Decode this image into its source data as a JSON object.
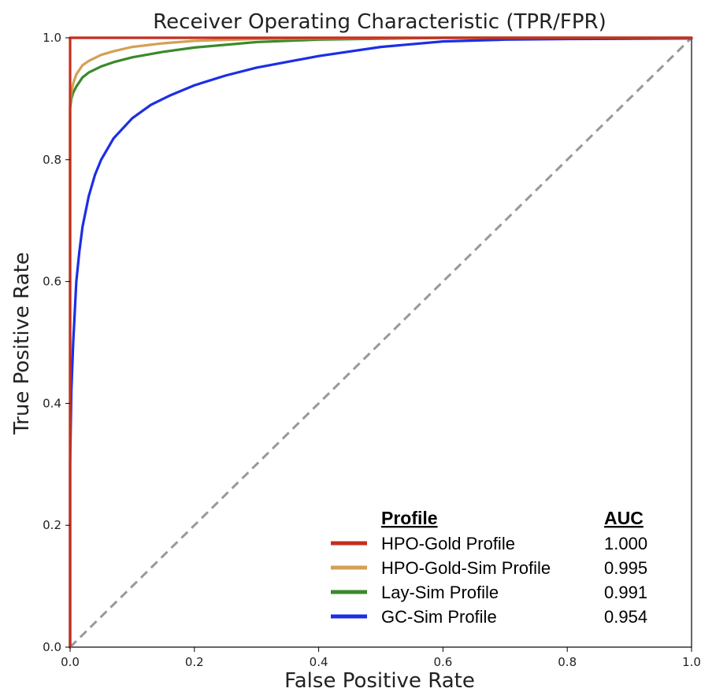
{
  "chart_data": {
    "type": "line",
    "title": "Receiver Operating Characteristic (TPR/FPR)",
    "xlabel": "False Positive Rate",
    "ylabel": "True Positive Rate",
    "xlim": [
      0.0,
      1.0
    ],
    "ylim": [
      0.0,
      1.0
    ],
    "xticks": [
      "0.0",
      "0.2",
      "0.4",
      "0.6",
      "0.8",
      "1.0"
    ],
    "yticks": [
      "0.0",
      "0.2",
      "0.4",
      "0.6",
      "0.8",
      "1.0"
    ],
    "grid": false,
    "legend": {
      "placement": "bottom-right",
      "header_profile": "Profile",
      "header_auc": "AUC"
    },
    "series": [
      {
        "name": "HPO-Gold Profile",
        "auc": "1.000",
        "color": "#c62e1f",
        "x": [
          0.0,
          0.0,
          1.0
        ],
        "y": [
          0.0,
          1.0,
          1.0
        ]
      },
      {
        "name": "HPO-Gold-Sim Profile",
        "auc": "0.995",
        "color": "#d4a055",
        "x": [
          0.0,
          0.0,
          0.002,
          0.005,
          0.01,
          0.02,
          0.03,
          0.05,
          0.07,
          0.1,
          0.15,
          0.2,
          0.3,
          0.4,
          0.6,
          1.0
        ],
        "y": [
          0.0,
          0.89,
          0.91,
          0.925,
          0.94,
          0.955,
          0.962,
          0.972,
          0.978,
          0.985,
          0.991,
          0.995,
          0.998,
          0.999,
          1.0,
          1.0
        ]
      },
      {
        "name": "Lay-Sim Profile",
        "auc": "0.991",
        "color": "#3a8a2a",
        "x": [
          0.0,
          0.0,
          0.002,
          0.005,
          0.01,
          0.02,
          0.03,
          0.05,
          0.07,
          0.1,
          0.15,
          0.2,
          0.3,
          0.4,
          0.6,
          1.0
        ],
        "y": [
          0.0,
          0.885,
          0.9,
          0.91,
          0.92,
          0.935,
          0.943,
          0.953,
          0.96,
          0.968,
          0.977,
          0.984,
          0.993,
          0.997,
          1.0,
          1.0
        ]
      },
      {
        "name": "GC-Sim Profile",
        "auc": "0.954",
        "color": "#1c2ee6",
        "x": [
          0.0,
          0.0,
          0.002,
          0.005,
          0.01,
          0.015,
          0.02,
          0.03,
          0.04,
          0.05,
          0.07,
          0.1,
          0.13,
          0.16,
          0.2,
          0.25,
          0.3,
          0.4,
          0.5,
          0.6,
          0.7,
          0.8,
          1.0
        ],
        "y": [
          0.0,
          0.3,
          0.42,
          0.5,
          0.6,
          0.65,
          0.69,
          0.74,
          0.775,
          0.8,
          0.835,
          0.868,
          0.89,
          0.905,
          0.922,
          0.938,
          0.951,
          0.97,
          0.985,
          0.994,
          0.997,
          0.998,
          0.999
        ]
      },
      {
        "name": "",
        "color": "#999999",
        "dashed": true,
        "x": [
          0.0,
          1.0
        ],
        "y": [
          0.0,
          1.0
        ]
      }
    ]
  }
}
